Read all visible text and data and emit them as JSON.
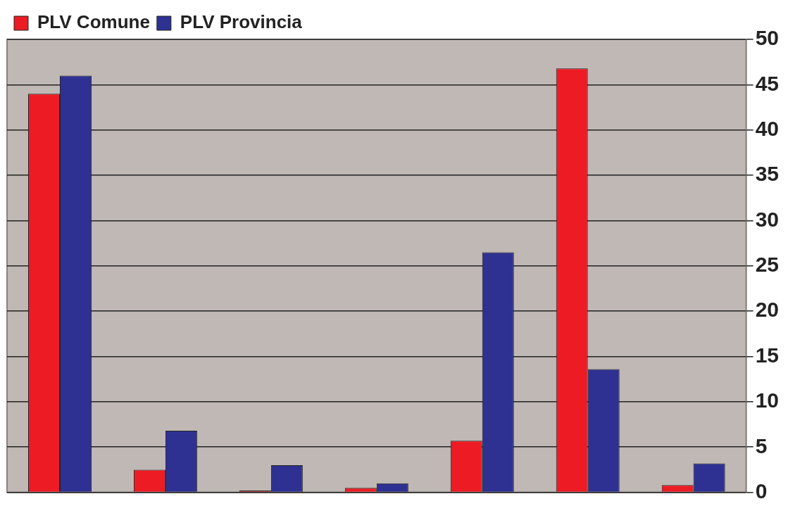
{
  "chart_data": {
    "type": "bar",
    "categories": [
      null,
      null,
      null,
      null,
      null,
      null,
      null
    ],
    "series": [
      {
        "name": "PLV Comune",
        "color": "#ed1c24",
        "values": [
          44,
          2.5,
          0.2,
          0.5,
          5.7,
          46.8,
          0.8
        ]
      },
      {
        "name": "PLV Provincia",
        "color": "#2e3192",
        "values": [
          46,
          6.8,
          3,
          1,
          26.5,
          13.6,
          3.2
        ]
      }
    ],
    "ylim": [
      0,
      50
    ],
    "yticks": [
      0,
      5,
      10,
      15,
      20,
      25,
      30,
      35,
      40,
      45,
      50
    ],
    "grid": "y",
    "legend": "top left"
  }
}
